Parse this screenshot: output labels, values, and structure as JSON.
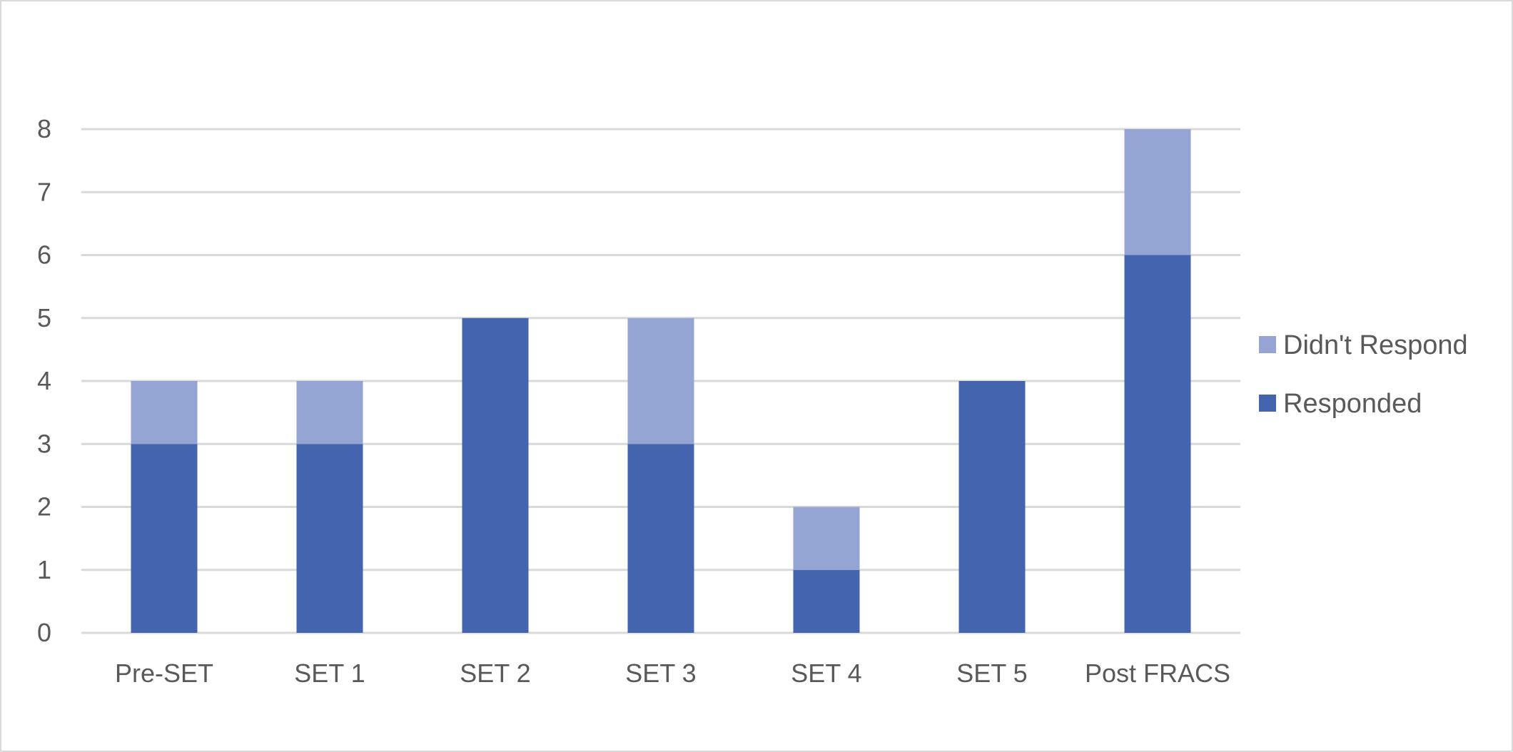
{
  "chart_data": {
    "type": "bar",
    "stacked": true,
    "title": "",
    "xlabel": "",
    "ylabel": "",
    "categories": [
      "Pre-SET",
      "SET 1",
      "SET 2",
      "SET 3",
      "SET 4",
      "SET 5",
      "Post FRACS"
    ],
    "series": [
      {
        "name": "Responded",
        "values": [
          3,
          3,
          5,
          3,
          1,
          4,
          6
        ],
        "color": "#4464ad"
      },
      {
        "name": "Didn't Respond",
        "values": [
          1,
          1,
          0,
          2,
          1,
          0,
          2
        ],
        "color": "#94a5d3"
      }
    ],
    "ylim": [
      0,
      8
    ],
    "yticks": [
      0,
      1,
      2,
      3,
      4,
      5,
      6,
      7,
      8
    ],
    "grid": true,
    "legend_position": "right",
    "legend_order": [
      "Didn't Respond",
      "Responded"
    ],
    "colors": {
      "gridline": "#d9d9d9",
      "text": "#595959",
      "frame": "#d9d9d9"
    }
  }
}
